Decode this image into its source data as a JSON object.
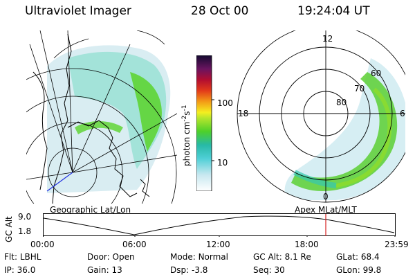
{
  "header": {
    "title": "Ultraviolet Imager",
    "date": "28 Oct 00",
    "time": "19:24:04 UT"
  },
  "colorbar": {
    "unit": "photon cm",
    "unit_exp1": "-2",
    "unit_s": "s",
    "unit_exp2": "-1",
    "ticks": [
      "100",
      "10"
    ]
  },
  "polar": {
    "labels": {
      "mlt12": "12",
      "mlt18": "18",
      "mlt6": "6",
      "mlt0": "0",
      "lat60": "60",
      "lat70": "70",
      "lat80": "80"
    }
  },
  "panels": {
    "left_caption": "Geographic Lat/Lon",
    "right_caption": "Apex MLat/MLT"
  },
  "altitude_plot": {
    "axis_label": "GC Alt",
    "y_ticks": [
      "9.0",
      "1.8"
    ],
    "x_ticks": [
      "00:00",
      "06:00",
      "12:00",
      "18:00",
      "23:59"
    ],
    "marker_color": "#d42020"
  },
  "footer": {
    "row1": [
      {
        "label": "Flt:",
        "value": "LBHL"
      },
      {
        "label": "Door:",
        "value": "Open"
      },
      {
        "label": "Mode:",
        "value": "Normal"
      },
      {
        "label": "GC Alt:",
        "value": "8.1 Re"
      },
      {
        "label": "GLat:",
        "value": "68.4"
      }
    ],
    "row2": [
      {
        "label": "IP:",
        "value": "36.0"
      },
      {
        "label": "Gain:",
        "value": "13"
      },
      {
        "label": "Dsp:",
        "value": "-3.8"
      },
      {
        "label": "Seq:",
        "value": "30"
      },
      {
        "label": "GLon:",
        "value": "99.8"
      }
    ]
  }
}
